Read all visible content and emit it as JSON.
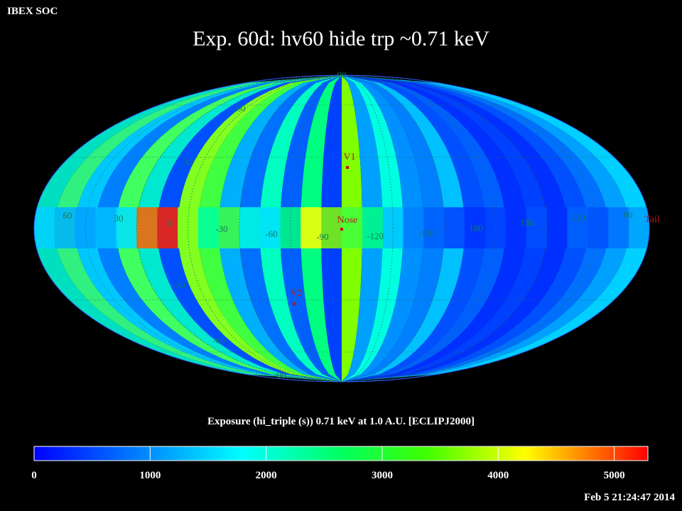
{
  "header": {
    "org": "IBEX SOC",
    "title": "Exp.   60d: hv60 hide trp ~0.71 keV"
  },
  "map": {
    "longitude_labels": [
      60,
      30,
      0,
      -30,
      -60,
      -90,
      -120,
      -150,
      180,
      150,
      120,
      90
    ],
    "latitude_labels": [
      90,
      60,
      30,
      -30,
      -60,
      -90
    ],
    "markers": [
      {
        "label": "V1"
      },
      {
        "label": "Nose"
      },
      {
        "label": "V2"
      },
      {
        "label": "Tail"
      }
    ]
  },
  "colorbar": {
    "label": "Exposure (hi_triple (s))  0.71 keV at 1.0 A.U. [ECLIPJ2000]",
    "range": [
      0,
      5290
    ],
    "ticks": [
      0,
      1000,
      2000,
      3000,
      4000,
      5000
    ]
  },
  "timestamp": "Feb  5 21:24:47 2014"
}
